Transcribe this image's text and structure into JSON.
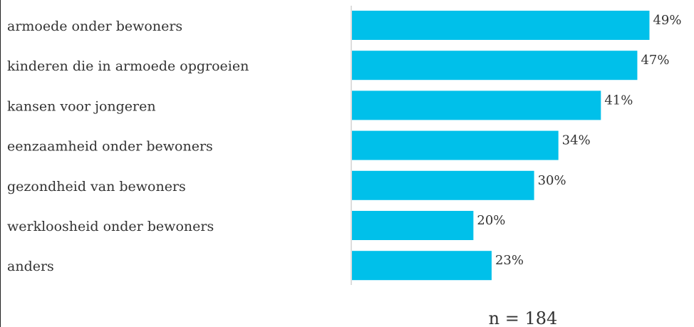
{
  "chart_data": {
    "type": "bar",
    "orientation": "horizontal",
    "categories": [
      "armoede onder bewoners",
      "kinderen die in armoede opgroeien",
      "kansen voor jongeren",
      "eenzaamheid onder bewoners",
      "gezondheid van bewoners",
      "werkloosheid onder bewoners",
      "anders"
    ],
    "values": [
      49,
      47,
      41,
      34,
      30,
      20,
      23
    ],
    "value_labels": [
      "49%",
      "47%",
      "41%",
      "34%",
      "30%",
      "20%",
      "23%"
    ],
    "unit": "%",
    "xlim": [
      0,
      50
    ],
    "grid": false,
    "bar_color": "#00c0ea",
    "note": "n = 184"
  }
}
